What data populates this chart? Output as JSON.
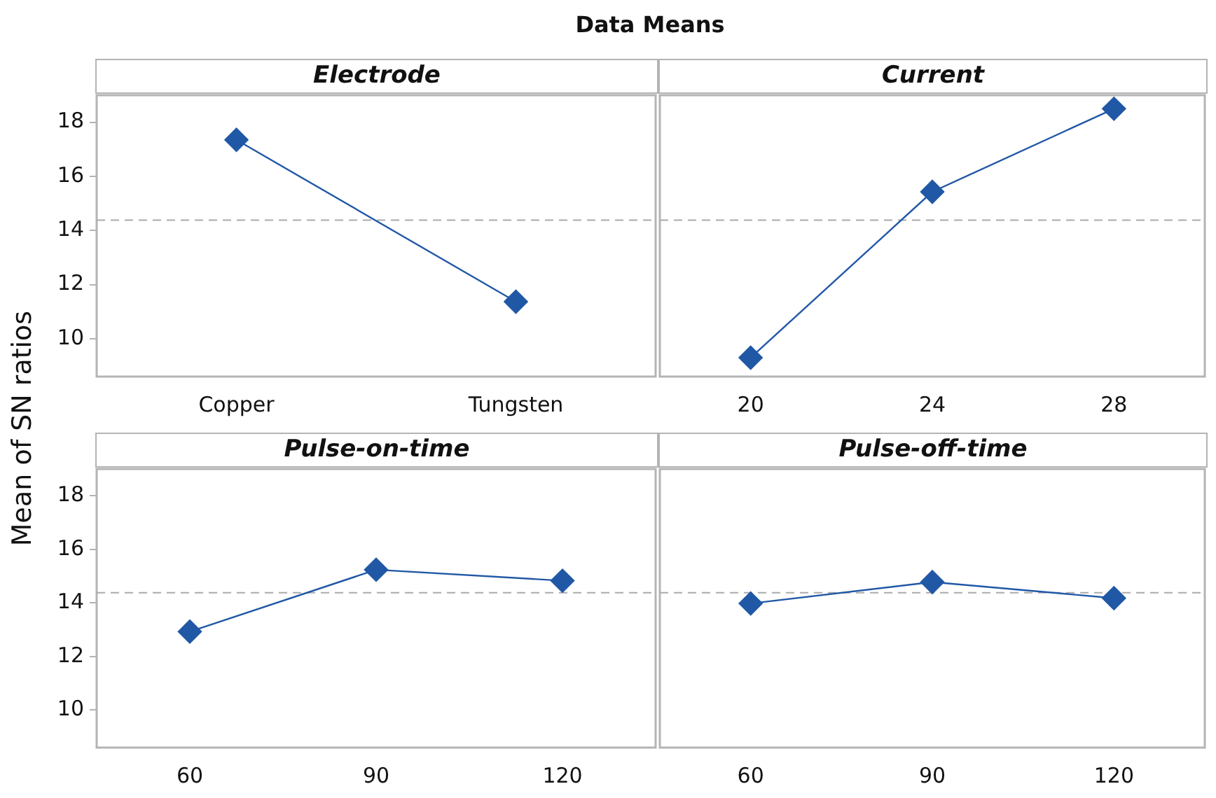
{
  "chart_data": [
    {
      "type": "line",
      "title": "Data Means",
      "ylabel": "Mean of SN ratios",
      "xlabel": "Electrode",
      "categories": [
        "Copper",
        "Tungsten"
      ],
      "series": [
        {
          "color": "#2158a6",
          "values": [
            17.35,
            11.37
          ]
        }
      ],
      "ylim": [
        8.6,
        19.0
      ],
      "yticks": [
        10,
        12,
        14,
        16,
        18
      ],
      "grid": false,
      "marker": "diamond",
      "line_style": "solid",
      "ref_lines": [
        {
          "axis": "y",
          "value": 14.38,
          "color": "#aaaaaa",
          "line_style": "dashed"
        }
      ]
    },
    {
      "type": "line",
      "xlabel": "Current",
      "categories": [
        "20",
        "24",
        "28"
      ],
      "series": [
        {
          "color": "#2158a6",
          "values": [
            9.3,
            15.43,
            18.5
          ]
        }
      ],
      "ylim": [
        8.6,
        19.0
      ],
      "yticks": [
        10,
        12,
        14,
        16,
        18
      ],
      "tick_labels": "x",
      "grid": false,
      "marker": "diamond",
      "line_style": "solid",
      "ref_lines": [
        {
          "axis": "y",
          "value": 14.38,
          "color": "#aaaaaa",
          "line_style": "dashed"
        }
      ]
    },
    {
      "type": "line",
      "xlabel": "Pulse-on-time",
      "categories": [
        "60",
        "90",
        "120"
      ],
      "series": [
        {
          "color": "#2158a6",
          "values": [
            12.93,
            15.24,
            14.83
          ]
        }
      ],
      "ylim": [
        8.6,
        19.0
      ],
      "yticks": [
        10,
        12,
        14,
        16,
        18
      ],
      "grid": false,
      "marker": "diamond",
      "line_style": "solid",
      "ref_lines": [
        {
          "axis": "y",
          "value": 14.38,
          "color": "#aaaaaa",
          "line_style": "dashed"
        }
      ]
    },
    {
      "type": "line",
      "xlabel": "Pulse-off-time",
      "categories": [
        "60",
        "90",
        "120"
      ],
      "series": [
        {
          "color": "#2158a6",
          "values": [
            13.98,
            14.78,
            14.18
          ]
        }
      ],
      "ylim": [
        8.6,
        19.0
      ],
      "yticks": [
        10,
        12,
        14,
        16,
        18
      ],
      "tick_labels": "x",
      "grid": false,
      "marker": "diamond",
      "line_style": "solid",
      "ref_lines": [
        {
          "axis": "y",
          "value": 14.38,
          "color": "#aaaaaa",
          "line_style": "dashed"
        }
      ]
    }
  ]
}
